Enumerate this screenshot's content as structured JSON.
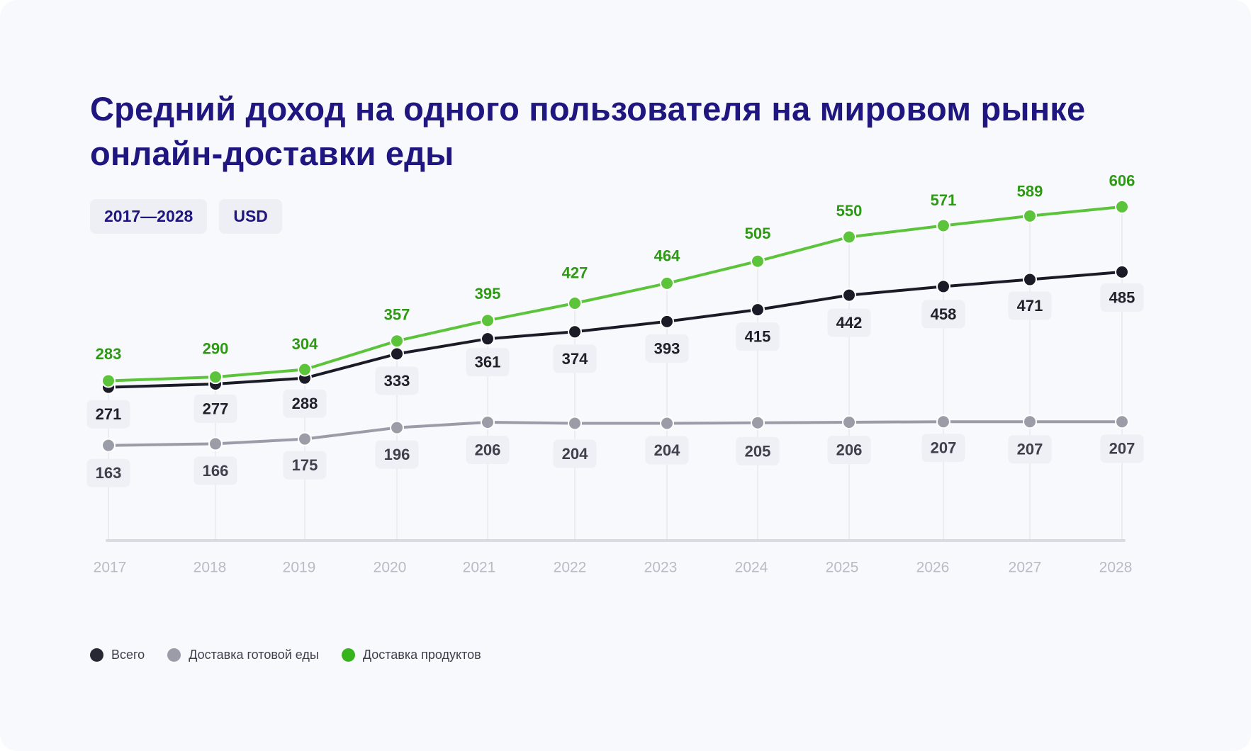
{
  "title": "Средний доход на одного пользователя на мировом рынке онлайн-доставки еды",
  "chips": {
    "period": "2017—2028",
    "currency": "USD"
  },
  "colors": {
    "background": "#f8f9fd",
    "title": "#1f1680",
    "total": "#1a1b26",
    "ready_food": "#9a9ca8",
    "groceries": "#5cc43a",
    "groceries_label": "#2e9a14",
    "legend_groceries": "#37b41d"
  },
  "legend": [
    {
      "label": "Всего",
      "color": "#262934"
    },
    {
      "label": "Доставка готовой еды",
      "color": "#9a9ca8"
    },
    {
      "label": "Доставка продуктов",
      "color": "#37b41d"
    }
  ],
  "chart_data": {
    "type": "line",
    "title": "Средний доход на одного пользователя на мировом рынке онлайн-доставки еды",
    "xlabel": "",
    "ylabel": "USD",
    "categories": [
      "2017",
      "2018",
      "2019",
      "2020",
      "2021",
      "2022",
      "2023",
      "2024",
      "2025",
      "2026",
      "2027",
      "2028"
    ],
    "series": [
      {
        "name": "Доставка продуктов",
        "values": [
          283,
          290,
          304,
          357,
          395,
          427,
          464,
          505,
          550,
          571,
          589,
          606
        ]
      },
      {
        "name": "Всего",
        "values": [
          271,
          277,
          288,
          333,
          361,
          374,
          393,
          415,
          442,
          458,
          471,
          485
        ]
      },
      {
        "name": "Доставка готовой еды",
        "values": [
          163,
          166,
          175,
          196,
          206,
          204,
          204,
          205,
          206,
          207,
          207,
          207
        ]
      }
    ],
    "grid": false,
    "legend_position": "bottom-left"
  }
}
